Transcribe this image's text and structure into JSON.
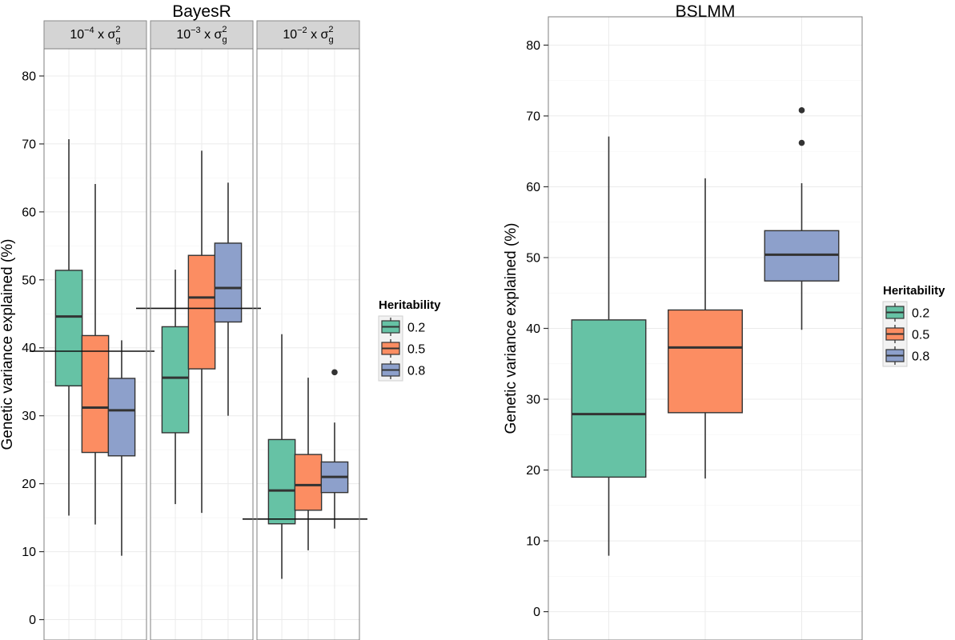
{
  "colors": {
    "0.2": "#66c2a5",
    "0.5": "#fc8d62",
    "0.8": "#8da0cb",
    "panel_bg": "#ffffff",
    "grid": "#ebebeb",
    "strip_bg": "#d4d4d4"
  },
  "chart_data": [
    {
      "type": "boxplot",
      "title": "BayesR",
      "ylabel": "Genetic variance explained (%)",
      "ylim": [
        -3,
        84
      ],
      "yticks": [
        0,
        10,
        20,
        30,
        40,
        50,
        60,
        70,
        80
      ],
      "grid": true,
      "legend": {
        "title": "Heritability",
        "position": "right",
        "entries": [
          "0.2",
          "0.5",
          "0.8"
        ]
      },
      "facets": [
        {
          "strip": {
            "base": "10",
            "exp": "−4",
            "mid": " x σ",
            "sup": "2",
            "sub": "g"
          },
          "reference_line": 39.5,
          "series": [
            {
              "name": "0.2",
              "whisker_low": 15.3,
              "q1": 34.4,
              "median": 44.6,
              "q3": 51.4,
              "whisker_high": 70.7,
              "outliers": []
            },
            {
              "name": "0.5",
              "whisker_low": 14.0,
              "q1": 24.6,
              "median": 31.2,
              "q3": 41.8,
              "whisker_high": 64.1,
              "outliers": []
            },
            {
              "name": "0.8",
              "whisker_low": 9.4,
              "q1": 24.1,
              "median": 30.8,
              "q3": 35.5,
              "whisker_high": 41.1,
              "outliers": []
            }
          ]
        },
        {
          "strip": {
            "base": "10",
            "exp": "−3",
            "mid": " x σ",
            "sup": "2",
            "sub": "g"
          },
          "reference_line": 45.8,
          "series": [
            {
              "name": "0.2",
              "whisker_low": 17.0,
              "q1": 27.5,
              "median": 35.6,
              "q3": 43.1,
              "whisker_high": 51.5,
              "outliers": []
            },
            {
              "name": "0.5",
              "whisker_low": 15.7,
              "q1": 36.9,
              "median": 47.4,
              "q3": 53.6,
              "whisker_high": 69.0,
              "outliers": []
            },
            {
              "name": "0.8",
              "whisker_low": 30.0,
              "q1": 43.8,
              "median": 48.8,
              "q3": 55.4,
              "whisker_high": 64.3,
              "outliers": []
            }
          ]
        },
        {
          "strip": {
            "base": "10",
            "exp": "−2",
            "mid": " x σ",
            "sup": "2",
            "sub": "g"
          },
          "reference_line": 14.8,
          "series": [
            {
              "name": "0.2",
              "whisker_low": 6.0,
              "q1": 14.1,
              "median": 19.0,
              "q3": 26.5,
              "whisker_high": 42.0,
              "outliers": []
            },
            {
              "name": "0.5",
              "whisker_low": 10.2,
              "q1": 16.1,
              "median": 19.8,
              "q3": 24.3,
              "whisker_high": 35.6,
              "outliers": []
            },
            {
              "name": "0.8",
              "whisker_low": 13.4,
              "q1": 18.7,
              "median": 21.0,
              "q3": 23.2,
              "whisker_high": 29.0,
              "outliers": [
                36.4
              ]
            }
          ]
        }
      ]
    },
    {
      "type": "boxplot",
      "title": "BSLMM",
      "ylabel": "Genetic variance explained (%)",
      "ylim": [
        -4,
        84
      ],
      "yticks": [
        0,
        10,
        20,
        30,
        40,
        50,
        60,
        70,
        80
      ],
      "grid": true,
      "legend": {
        "title": "Heritability",
        "position": "right",
        "entries": [
          "0.2",
          "0.5",
          "0.8"
        ]
      },
      "series": [
        {
          "name": "0.2",
          "whisker_low": 7.9,
          "q1": 19.0,
          "median": 27.9,
          "q3": 41.2,
          "whisker_high": 67.1,
          "outliers": []
        },
        {
          "name": "0.5",
          "whisker_low": 18.8,
          "q1": 28.1,
          "median": 37.3,
          "q3": 42.6,
          "whisker_high": 61.2,
          "outliers": []
        },
        {
          "name": "0.8",
          "whisker_low": 39.8,
          "q1": 46.7,
          "median": 50.4,
          "q3": 53.8,
          "whisker_high": 60.5,
          "outliers": [
            66.2,
            70.8
          ]
        }
      ]
    }
  ]
}
